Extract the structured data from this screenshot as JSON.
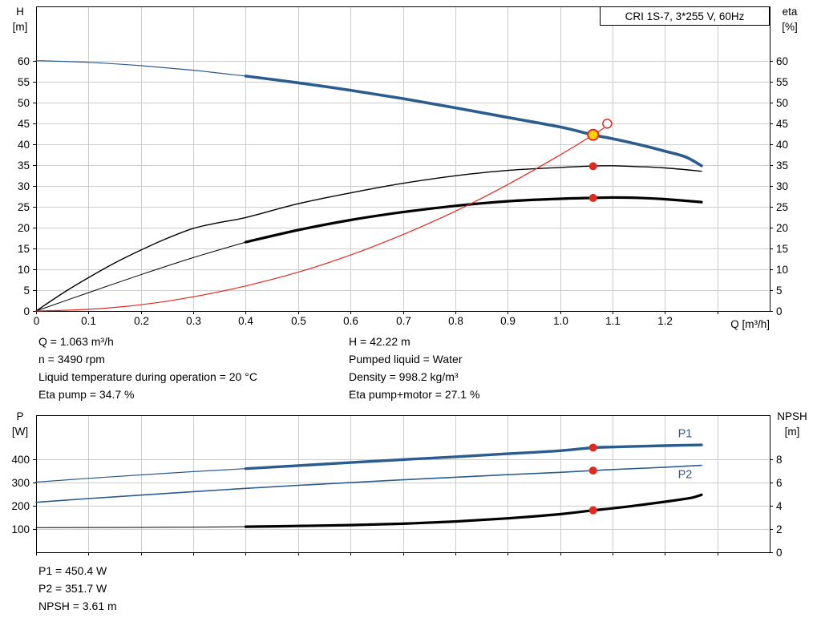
{
  "title_box": {
    "text": "CRI 1S-7, 3*255 V, 60Hz"
  },
  "top_chart": {
    "y_left_label": "H",
    "y_left_unit": "[m]",
    "y_right_label": "eta",
    "y_right_unit": "[%]",
    "x_label": "Q [m³/h]"
  },
  "bottom_chart": {
    "y_left_label": "P",
    "y_left_unit": "[W]",
    "y_right_label": "NPSH",
    "y_right_unit": "[m]"
  },
  "info": {
    "left": [
      "Q = 1.063 m³/h",
      "n = 3490 rpm",
      "Liquid temperature during operation = 20 °C",
      "Eta pump = 34.7 %"
    ],
    "right": [
      "H = 42.22 m",
      "Pumped liquid = Water",
      "Density = 998.2 kg/m³",
      "Eta pump+motor = 27.1 %"
    ]
  },
  "footer": [
    "P1 = 450.4 W",
    "P2 = 351.7 W",
    "NPSH = 3.61 m"
  ],
  "colors": {
    "curve_blue": "#2a5c8e",
    "curve_red": "#e02a20",
    "duty_yellow": "#ffd200",
    "grid": "#cccccc",
    "axis": "#000000"
  },
  "chart_data": [
    {
      "svg_id": "chart-top",
      "type": "line",
      "title": "CRI 1S-7, 3*255 V, 60Hz",
      "xlabel": "Q [m³/h]",
      "ylabel_left": "H [m]",
      "ylabel_right": "eta [%]",
      "xlim": [
        0,
        1.4
      ],
      "ylim": [
        0,
        73
      ],
      "ylim_right": [
        0,
        73
      ],
      "y_labels_both": true,
      "x_ticks": [
        {
          "v": 0,
          "label": "0"
        },
        {
          "v": 0.1,
          "label": "0.1"
        },
        {
          "v": 0.2,
          "label": "0.2"
        },
        {
          "v": 0.3,
          "label": "0.3"
        },
        {
          "v": 0.4,
          "label": "0.4"
        },
        {
          "v": 0.5,
          "label": "0.5"
        },
        {
          "v": 0.6,
          "label": "0.6"
        },
        {
          "v": 0.7,
          "label": "0.7"
        },
        {
          "v": 0.8,
          "label": "0.8"
        },
        {
          "v": 0.9,
          "label": "0.9"
        },
        {
          "v": 1,
          "label": "1.0"
        },
        {
          "v": 1.1,
          "label": "1.1"
        },
        {
          "v": 1.2,
          "label": "1.2"
        },
        {
          "v": 1.3,
          "label": ""
        }
      ],
      "y_ticks": [
        {
          "v": 0,
          "label": "0"
        },
        {
          "v": 5,
          "label": "5"
        },
        {
          "v": 10,
          "label": "10"
        },
        {
          "v": 15,
          "label": "15"
        },
        {
          "v": 20,
          "label": "20"
        },
        {
          "v": 25,
          "label": "25"
        },
        {
          "v": 30,
          "label": "30"
        },
        {
          "v": 35,
          "label": "35"
        },
        {
          "v": 40,
          "label": "40"
        },
        {
          "v": 45,
          "label": "45"
        },
        {
          "v": 50,
          "label": "50"
        },
        {
          "v": 55,
          "label": "55"
        },
        {
          "v": 60,
          "label": "60"
        }
      ],
      "series": [
        {
          "name": "hq-curve-full-range",
          "color": "#2a5c8e",
          "width": 1.2,
          "points": [
            [
              0,
              60
            ],
            [
              0.1,
              59.6
            ],
            [
              0.2,
              58.8
            ],
            [
              0.3,
              57.7
            ],
            [
              0.4,
              56.3
            ]
          ]
        },
        {
          "name": "hq-curve",
          "color": "#2a5c8e",
          "width": 3.6,
          "points": [
            [
              0.4,
              56.3
            ],
            [
              0.5,
              54.7
            ],
            [
              0.6,
              52.9
            ],
            [
              0.7,
              50.9
            ],
            [
              0.8,
              48.7
            ],
            [
              0.9,
              46.4
            ],
            [
              1,
              44.1
            ],
            [
              1.063,
              42.22
            ],
            [
              1.1,
              41.3
            ],
            [
              1.15,
              39.9
            ],
            [
              1.2,
              38.3
            ],
            [
              1.24,
              36.9
            ],
            [
              1.27,
              34.8
            ]
          ]
        },
        {
          "name": "eta-pump-curve",
          "color": "#000000",
          "width": 1.4,
          "points": [
            [
              0,
              0
            ],
            [
              0.05,
              4.2
            ],
            [
              0.1,
              8
            ],
            [
              0.15,
              11.5
            ],
            [
              0.2,
              14.6
            ],
            [
              0.25,
              17.4
            ],
            [
              0.3,
              19.8
            ],
            [
              0.35,
              21.2
            ],
            [
              0.4,
              22.4
            ],
            [
              0.5,
              25.7
            ],
            [
              0.6,
              28.3
            ],
            [
              0.7,
              30.6
            ],
            [
              0.8,
              32.4
            ],
            [
              0.9,
              33.7
            ],
            [
              1,
              34.4
            ],
            [
              1.05,
              34.7
            ],
            [
              1.1,
              34.8
            ],
            [
              1.15,
              34.6
            ],
            [
              1.2,
              34.3
            ],
            [
              1.27,
              33.5
            ]
          ]
        },
        {
          "name": "eta-pump-motor-lead",
          "color": "#000000",
          "width": 1,
          "points": [
            [
              0,
              0
            ],
            [
              0.1,
              4.4
            ],
            [
              0.2,
              8.7
            ],
            [
              0.3,
              12.8
            ],
            [
              0.4,
              16.5
            ]
          ]
        },
        {
          "name": "eta-pump-motor-curve",
          "color": "#000000",
          "width": 3.2,
          "points": [
            [
              0.4,
              16.5
            ],
            [
              0.5,
              19.4
            ],
            [
              0.6,
              21.8
            ],
            [
              0.7,
              23.7
            ],
            [
              0.8,
              25.2
            ],
            [
              0.9,
              26.3
            ],
            [
              1,
              26.9
            ],
            [
              1.063,
              27.1
            ],
            [
              1.1,
              27.2
            ],
            [
              1.15,
              27.1
            ],
            [
              1.2,
              26.8
            ],
            [
              1.27,
              26.1
            ]
          ]
        },
        {
          "name": "system-curve",
          "color": "#e02a20",
          "width": 1.2,
          "points": [
            [
              0,
              0
            ],
            [
              0.1,
              0.4
            ],
            [
              0.2,
              1.5
            ],
            [
              0.3,
              3.4
            ],
            [
              0.4,
              6
            ],
            [
              0.5,
              9.3
            ],
            [
              0.6,
              13.4
            ],
            [
              0.7,
              18.3
            ],
            [
              0.8,
              23.9
            ],
            [
              0.9,
              30.3
            ],
            [
              1,
              37.4
            ],
            [
              1.063,
              42.22
            ],
            [
              1.083,
              43.8
            ]
          ]
        }
      ],
      "markers": [
        {
          "name": "system-curve-end-marker",
          "x": 1.09,
          "y": 44.9,
          "r": 5.5,
          "fill": "#ffffff",
          "stroke": "#e02a20",
          "stroke_width": 1.5
        },
        {
          "name": "duty-point",
          "x": 1.063,
          "y": 42.22,
          "r": 6.5,
          "fill": "#ffd200",
          "stroke": "#e02a20",
          "stroke_width": 2
        },
        {
          "name": "eta-pump-point",
          "x": 1.063,
          "y": 34.7,
          "r": 5,
          "fill": "#e02a20"
        },
        {
          "name": "eta-pump-motor-point",
          "x": 1.063,
          "y": 27.1,
          "r": 5,
          "fill": "#e02a20"
        }
      ]
    },
    {
      "svg_id": "chart-bottom",
      "type": "line",
      "xlabel": "Q [m³/h]",
      "ylabel_left": "P [W]",
      "ylabel_right": "NPSH [m]",
      "xlim": [
        0,
        1.4
      ],
      "ylim": [
        0,
        590
      ],
      "ylim_right": [
        0,
        11.8
      ],
      "y_labels_both": false,
      "x_ticks": [
        {
          "v": 0,
          "label": ""
        },
        {
          "v": 0.1,
          "label": ""
        },
        {
          "v": 0.2,
          "label": ""
        },
        {
          "v": 0.3,
          "label": ""
        },
        {
          "v": 0.4,
          "label": ""
        },
        {
          "v": 0.5,
          "label": ""
        },
        {
          "v": 0.6,
          "label": ""
        },
        {
          "v": 0.7,
          "label": ""
        },
        {
          "v": 0.8,
          "label": ""
        },
        {
          "v": 0.9,
          "label": ""
        },
        {
          "v": 1,
          "label": ""
        },
        {
          "v": 1.1,
          "label": ""
        },
        {
          "v": 1.2,
          "label": ""
        },
        {
          "v": 1.3,
          "label": ""
        }
      ],
      "y_ticks": [
        {
          "v": 100,
          "label": "100"
        },
        {
          "v": 200,
          "label": "200"
        },
        {
          "v": 300,
          "label": "300"
        },
        {
          "v": 400,
          "label": "400"
        }
      ],
      "y2_ticks": [
        {
          "v": 0,
          "label": "0"
        },
        {
          "v": 2,
          "label": "2"
        },
        {
          "v": 4,
          "label": "4"
        },
        {
          "v": 6,
          "label": "6"
        },
        {
          "v": 8,
          "label": "8"
        }
      ],
      "series": [
        {
          "name": "p1-curve-lead",
          "color": "#2a5c8e",
          "width": 1.2,
          "points": [
            [
              0,
              302
            ],
            [
              0.1,
              318
            ],
            [
              0.2,
              333
            ],
            [
              0.3,
              347
            ],
            [
              0.4,
              360
            ]
          ]
        },
        {
          "name": "p1-curve",
          "color": "#2a5c8e",
          "width": 3.4,
          "points": [
            [
              0.4,
              360
            ],
            [
              0.5,
              373
            ],
            [
              0.6,
              386
            ],
            [
              0.7,
              399
            ],
            [
              0.8,
              411
            ],
            [
              0.9,
              424
            ],
            [
              1,
              437
            ],
            [
              1.063,
              450.4
            ],
            [
              1.1,
              453
            ],
            [
              1.15,
              456
            ],
            [
              1.2,
              459
            ],
            [
              1.27,
              462
            ]
          ]
        },
        {
          "name": "p2-curve",
          "color": "#2a5c8e",
          "width": 1.6,
          "points": [
            [
              0,
              215
            ],
            [
              0.1,
              231
            ],
            [
              0.2,
              246
            ],
            [
              0.3,
              261
            ],
            [
              0.4,
              275
            ],
            [
              0.5,
              288
            ],
            [
              0.6,
              300
            ],
            [
              0.7,
              312
            ],
            [
              0.8,
              323
            ],
            [
              0.9,
              334
            ],
            [
              1,
              344
            ],
            [
              1.063,
              351.7
            ],
            [
              1.1,
              356
            ],
            [
              1.2,
              366
            ],
            [
              1.27,
              374
            ]
          ]
        },
        {
          "name": "npsh-curve-lead",
          "color": "#000000",
          "width": 1,
          "axis": "right",
          "points": [
            [
              0,
              2.12
            ],
            [
              0.2,
              2.14
            ],
            [
              0.3,
              2.16
            ],
            [
              0.4,
              2.2
            ]
          ]
        },
        {
          "name": "npsh-curve",
          "color": "#000000",
          "width": 3.2,
          "axis": "right",
          "points": [
            [
              0.4,
              2.2
            ],
            [
              0.5,
              2.26
            ],
            [
              0.6,
              2.34
            ],
            [
              0.7,
              2.46
            ],
            [
              0.8,
              2.65
            ],
            [
              0.9,
              2.92
            ],
            [
              1,
              3.28
            ],
            [
              1.063,
              3.61
            ],
            [
              1.1,
              3.78
            ],
            [
              1.15,
              4.05
            ],
            [
              1.2,
              4.35
            ],
            [
              1.25,
              4.68
            ],
            [
              1.27,
              4.95
            ]
          ]
        }
      ],
      "markers": [
        {
          "name": "p1-point",
          "x": 1.063,
          "y": 450.4,
          "r": 5,
          "fill": "#e02a20"
        },
        {
          "name": "p2-point",
          "x": 1.063,
          "y": 351.7,
          "r": 5,
          "fill": "#e02a20"
        },
        {
          "name": "npsh-point",
          "x": 1.063,
          "y": 3.61,
          "axis": "right",
          "r": 5,
          "fill": "#e02a20"
        }
      ],
      "labels": [
        {
          "text": "P1",
          "x": 1.225,
          "y": 495,
          "color": "#2a5c8e"
        },
        {
          "text": "P2",
          "x": 1.225,
          "y": 320,
          "color": "#2a5c8e"
        }
      ]
    }
  ]
}
